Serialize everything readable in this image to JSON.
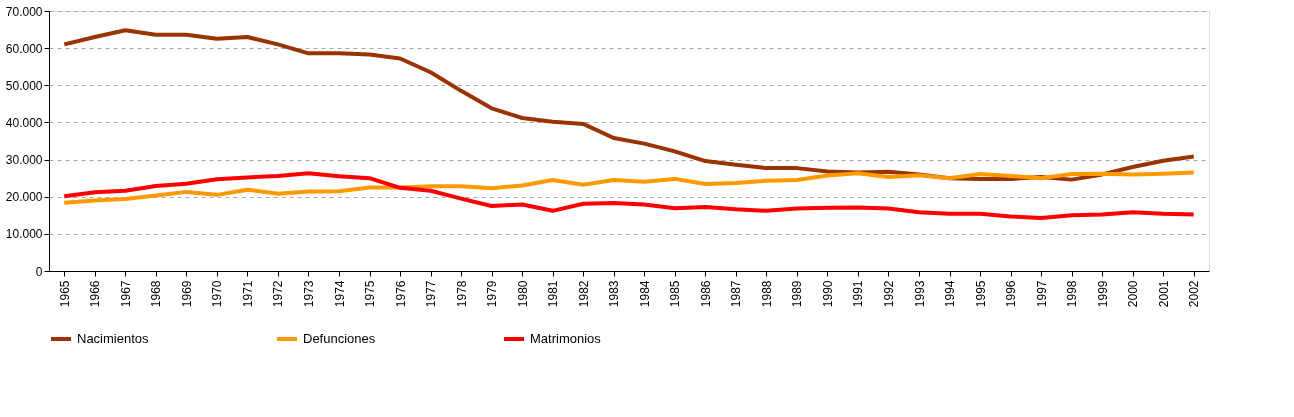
{
  "chart_data": {
    "type": "line",
    "categories": [
      "1965",
      "1966",
      "1967",
      "1968",
      "1969",
      "1970",
      "1971",
      "1972",
      "1973",
      "1974",
      "1975",
      "1976",
      "1977",
      "1978",
      "1979",
      "1980",
      "1981",
      "1982",
      "1983",
      "1984",
      "1985",
      "1986",
      "1987",
      "1988",
      "1989",
      "1990",
      "1991",
      "1992",
      "1993",
      "1994",
      "1995",
      "1996",
      "1997",
      "1998",
      "1999",
      "2000",
      "2001",
      "2002"
    ],
    "series": [
      {
        "name": "Nacimientos",
        "color": "#993300",
        "values": [
          61000,
          63000,
          64800,
          63600,
          63600,
          62500,
          63000,
          61000,
          58600,
          58600,
          58300,
          57200,
          53500,
          48500,
          43800,
          41200,
          40200,
          39600,
          35800,
          34300,
          32200,
          29600,
          28600,
          27700,
          27700,
          26800,
          26500,
          26700,
          26000,
          25000,
          24800,
          24800,
          25300,
          24600,
          26000,
          28000,
          29700,
          30800
        ]
      },
      {
        "name": "Defunciones",
        "color": "#ff9900",
        "values": [
          18400,
          19000,
          19400,
          20300,
          21300,
          20500,
          21900,
          20800,
          21400,
          21500,
          22500,
          22500,
          22800,
          22800,
          22300,
          23000,
          24500,
          23200,
          24500,
          24000,
          24800,
          23400,
          23700,
          24300,
          24500,
          25700,
          26300,
          25300,
          25800,
          25000,
          26100,
          25600,
          25000,
          26100,
          26200,
          26000,
          26200,
          26500
        ]
      },
      {
        "name": "Matrimonios",
        "color": "#ff0000",
        "values": [
          20100,
          21200,
          21600,
          22900,
          23500,
          24700,
          25200,
          25600,
          26300,
          25500,
          25000,
          22400,
          21600,
          19500,
          17500,
          17900,
          16200,
          18100,
          18300,
          17900,
          16900,
          17200,
          16600,
          16200,
          16800,
          17000,
          17100,
          16800,
          15800,
          15400,
          15400,
          14700,
          14300,
          15000,
          15200,
          15800,
          15400,
          15200
        ]
      }
    ],
    "ylim": [
      0,
      70000
    ],
    "yticks": [
      0,
      {
        "value": 10000,
        "label": "10.000"
      },
      {
        "value": 20000,
        "label": "20.000"
      },
      {
        "value": 30000,
        "label": "30.000"
      },
      {
        "value": 40000,
        "label": "40.000"
      },
      {
        "value": 50000,
        "label": "50.000"
      },
      {
        "value": 60000,
        "label": "60.000"
      },
      {
        "value": 70000,
        "label": "70.000"
      }
    ],
    "grid": "y",
    "legend": "bottom",
    "marker": "none",
    "line_style": "solid"
  }
}
